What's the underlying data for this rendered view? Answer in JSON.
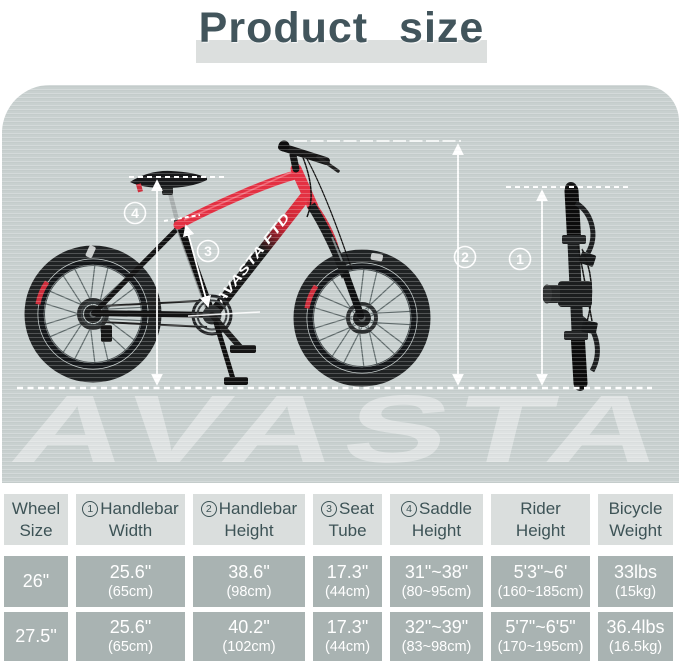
{
  "title": "Product size",
  "panel": {
    "watermark": "AVASTA",
    "frame_logo": "AVASTA FTD",
    "markers": {
      "handlebar_width": "1",
      "handlebar_height": "2",
      "seat_tube": "3",
      "saddle_height": "4"
    }
  },
  "colors": {
    "panel_bg": "#c8d0cf",
    "accent_red": "#e43143",
    "title_text": "#42555c",
    "title_bar_bg": "#dcdfde",
    "header_cell_bg": "#dadedd",
    "header_text": "#3d5356",
    "data_cell_bg": "#a9b3b2",
    "data_text": "#ffffff",
    "dimension_line": "#ffffff"
  },
  "table": {
    "headers": [
      {
        "marker": "",
        "line1": "Wheel",
        "line2": "Size"
      },
      {
        "marker": "1",
        "line1": "Handlebar",
        "line2": "Width"
      },
      {
        "marker": "2",
        "line1": "Handlebar",
        "line2": "Height"
      },
      {
        "marker": "3",
        "line1": "Seat",
        "line2": "Tube"
      },
      {
        "marker": "4",
        "line1": "Saddle",
        "line2": "Height"
      },
      {
        "marker": "",
        "line1": "Rider",
        "line2": "Height"
      },
      {
        "marker": "",
        "line1": "Bicycle",
        "line2": "Weight"
      }
    ],
    "rows": [
      {
        "cells": [
          {
            "primary": "26\""
          },
          {
            "primary": "25.6\"",
            "secondary": "(65cm)"
          },
          {
            "primary": "38.6\"",
            "secondary": "(98cm)"
          },
          {
            "primary": "17.3\"",
            "secondary": "(44cm)"
          },
          {
            "primary": "31\"~38\"",
            "secondary": "(80~95cm)"
          },
          {
            "primary": "5'3\"~6'",
            "secondary": "(160~185cm)"
          },
          {
            "primary": "33lbs",
            "secondary": "(15kg)"
          }
        ]
      },
      {
        "cells": [
          {
            "primary": "27.5\""
          },
          {
            "primary": "25.6\"",
            "secondary": "(65cm)"
          },
          {
            "primary": "40.2\"",
            "secondary": "(102cm)"
          },
          {
            "primary": "17.3\"",
            "secondary": "(44cm)"
          },
          {
            "primary": "32\"~39\"",
            "secondary": "(83~98cm)"
          },
          {
            "primary": "5'7\"~6'5\"",
            "secondary": "(170~195cm)"
          },
          {
            "primary": "36.4lbs",
            "secondary": "(16.5kg)"
          }
        ]
      }
    ]
  }
}
